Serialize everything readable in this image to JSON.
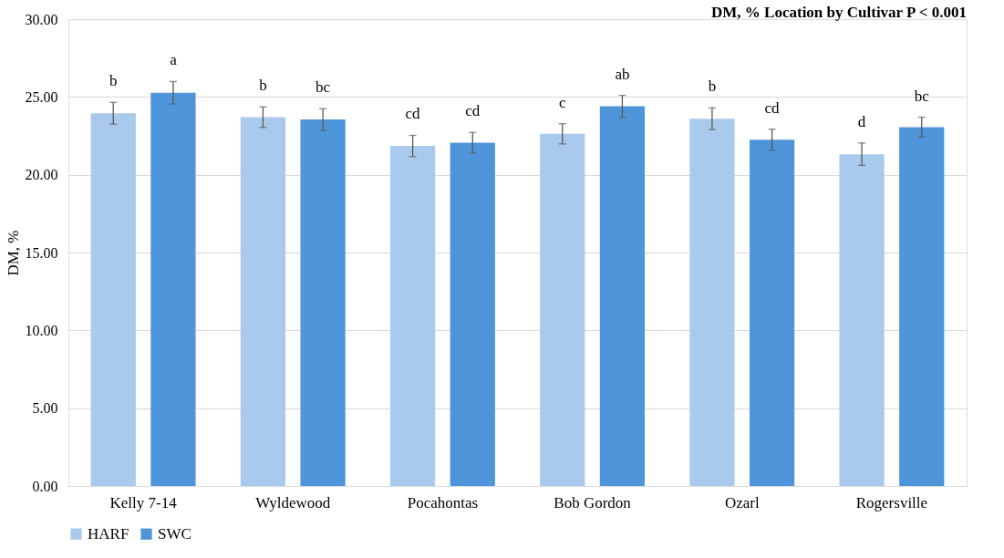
{
  "chart_data": {
    "type": "bar",
    "title": "DM, % Location by Cultivar P < 0.001",
    "ylabel": "DM, %",
    "categories": [
      "Kelly 7-14",
      "Wyldewood",
      "Pocahontas",
      "Bob Gordon",
      "Ozarl",
      "Rogersville"
    ],
    "series": [
      {
        "name": "HARF",
        "color": "#a9caec",
        "values": [
          23.95,
          23.7,
          21.85,
          22.63,
          23.6,
          21.32
        ],
        "errors": [
          0.7,
          0.66,
          0.68,
          0.65,
          0.7,
          0.72
        ],
        "value_labels": [
          "b",
          "b",
          "cd",
          "c",
          "b",
          "d"
        ]
      },
      {
        "name": "SWC",
        "color": "#4f95da",
        "values": [
          25.27,
          23.55,
          22.06,
          24.4,
          22.25,
          23.06
        ],
        "errors": [
          0.72,
          0.7,
          0.66,
          0.7,
          0.68,
          0.64
        ],
        "value_labels": [
          "a",
          "bc",
          "cd",
          "ab",
          "cd",
          "bc"
        ]
      }
    ],
    "ylim": [
      0,
      30
    ],
    "yticks": [
      {
        "value": 0,
        "label": "0.00"
      },
      {
        "value": 5,
        "label": "5.00"
      },
      {
        "value": 10,
        "label": "10.00"
      },
      {
        "value": 15,
        "label": "15.00"
      },
      {
        "value": 20,
        "label": "20.00"
      },
      {
        "value": 25,
        "label": "25.00"
      },
      {
        "value": 30,
        "label": "30.00"
      }
    ],
    "grid": "y",
    "legend": "bottom"
  }
}
